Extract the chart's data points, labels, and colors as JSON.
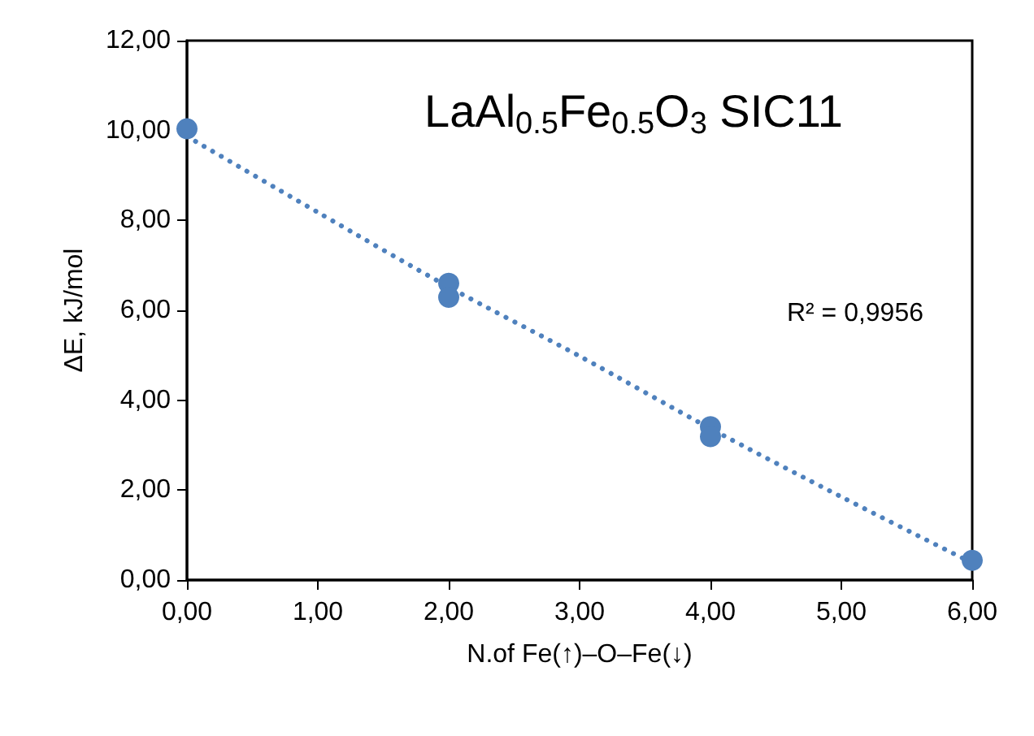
{
  "chart_data": {
    "type": "scatter",
    "title": "LaAl$_{0.5}$Fe$_{0.5}$O$_{3}$ SIC11",
    "xlabel": "N.of Fe(↑)–O–Fe(↓)",
    "ylabel": "ΔE, kJ/mol",
    "x": [
      0,
      2,
      2,
      4,
      4,
      6
    ],
    "series": [
      {
        "color": "#4f81bd",
        "values": [
          10.04,
          6.6,
          6.29,
          3.41,
          3.19,
          0.44
        ]
      },
      {
        "type": "line",
        "color": "#4f81bd",
        "line_style": "dotted",
        "marker": "none",
        "x": [
          0,
          1,
          2,
          3,
          4,
          5,
          6
        ],
        "values": [
          9.87,
          8.18,
          6.52,
          4.98,
          3.37,
          1.85,
          0.38
        ]
      }
    ],
    "annotations": [
      "R² = 0,9956"
    ],
    "marker": "circle",
    "xlim": [
      0,
      6
    ],
    "xticks": [
      {
        "value": 0,
        "label": "0,00"
      },
      {
        "value": 1,
        "label": "1,00"
      },
      {
        "value": 2,
        "label": "2,00"
      },
      {
        "value": 3,
        "label": "3,00"
      },
      {
        "value": 4,
        "label": "4,00"
      },
      {
        "value": 5,
        "label": "5,00"
      },
      {
        "value": 6,
        "label": "6,00"
      }
    ],
    "ylim": [
      0,
      12
    ],
    "yticks": [
      {
        "value": 0,
        "label": "0,00"
      },
      {
        "value": 2,
        "label": "2,00"
      },
      {
        "value": 4,
        "label": "4,00"
      },
      {
        "value": 6,
        "label": "6,00"
      },
      {
        "value": 8,
        "label": "8,00"
      },
      {
        "value": 10,
        "label": "10,00"
      },
      {
        "value": 12,
        "label": "12,00"
      }
    ],
    "grid": false
  }
}
